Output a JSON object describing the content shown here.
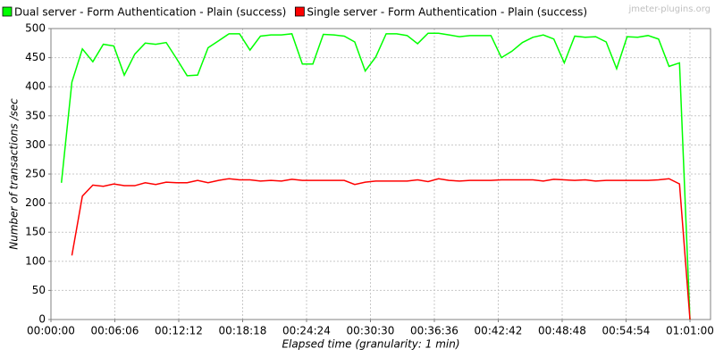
{
  "chart_data": {
    "type": "line",
    "watermark": "jmeter-plugins.org",
    "xlabel": "Elapsed time (granularity: 1 min)",
    "ylabel": "Number of transactions /sec",
    "x": [
      1,
      2,
      3,
      4,
      5,
      6,
      7,
      8,
      9,
      10,
      11,
      12,
      13,
      14,
      15,
      16,
      17,
      18,
      19,
      20,
      21,
      22,
      23,
      24,
      25,
      26,
      27,
      28,
      29,
      30,
      31,
      32,
      33,
      34,
      35,
      36,
      37,
      38,
      39,
      40,
      41,
      42,
      43,
      44,
      45,
      46,
      47,
      48,
      49,
      50,
      51,
      52,
      53,
      54,
      55,
      56,
      57,
      58,
      59,
      60,
      61
    ],
    "series": [
      {
        "name": "Dual server - Form Authentication - Plain (success)",
        "color": "#00ff00",
        "values": [
          235,
          408,
          465,
          443,
          473,
          470,
          420,
          456,
          475,
          473,
          476,
          448,
          419,
          420,
          467,
          479,
          491,
          491,
          463,
          487,
          489,
          489,
          491,
          439,
          439,
          490,
          489,
          487,
          477,
          427,
          451,
          491,
          491,
          488,
          474,
          492,
          492,
          489,
          486,
          488,
          488,
          488,
          450,
          461,
          476,
          485,
          489,
          482,
          441,
          487,
          485,
          486,
          477,
          431,
          486,
          485,
          488,
          482,
          435,
          441,
          0
        ]
      },
      {
        "name": "Single server - Form Authentication - Plain (success)",
        "color": "#ff0000",
        "values": [
          null,
          110,
          212,
          231,
          229,
          233,
          230,
          230,
          235,
          232,
          236,
          235,
          235,
          239,
          235,
          239,
          242,
          240,
          240,
          238,
          239,
          238,
          241,
          239,
          239,
          239,
          239,
          239,
          232,
          236,
          238,
          238,
          238,
          238,
          240,
          237,
          242,
          239,
          238,
          239,
          239,
          239,
          240,
          240,
          240,
          240,
          238,
          241,
          240,
          239,
          240,
          238,
          239,
          239,
          239,
          239,
          239,
          240,
          242,
          233,
          0
        ]
      }
    ],
    "xlim": [
      0,
      61
    ],
    "xticks": [
      {
        "value": 0,
        "label": "00:00:00"
      },
      {
        "value": 6.1,
        "label": "00:06:06"
      },
      {
        "value": 12.2,
        "label": "00:12:12"
      },
      {
        "value": 18.3,
        "label": "00:18:18"
      },
      {
        "value": 24.4,
        "label": "00:24:24"
      },
      {
        "value": 30.5,
        "label": "00:30:30"
      },
      {
        "value": 36.6,
        "label": "00:36:36"
      },
      {
        "value": 42.7,
        "label": "00:42:42"
      },
      {
        "value": 48.8,
        "label": "00:48:48"
      },
      {
        "value": 54.9,
        "label": "00:54:54"
      },
      {
        "value": 61,
        "label": "01:01:00"
      }
    ],
    "ylim": [
      0,
      500
    ],
    "yticks": [
      0,
      50,
      100,
      150,
      200,
      250,
      300,
      350,
      400,
      450,
      500
    ],
    "grid": true
  }
}
